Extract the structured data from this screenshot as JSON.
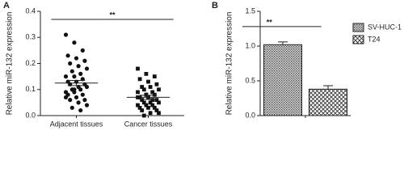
{
  "chart_data": [
    {
      "type": "strip",
      "panel": "A",
      "ylabel": "Relative miR-132 expression",
      "categories": [
        "Adjacent tissues",
        "Cancer tissues"
      ],
      "markers": [
        "circle",
        "square"
      ],
      "color": "#111111",
      "values": [
        [
          0.31,
          0.28,
          0.25,
          0.23,
          0.22,
          0.21,
          0.2,
          0.19,
          0.18,
          0.17,
          0.16,
          0.15,
          0.15,
          0.14,
          0.13,
          0.13,
          0.12,
          0.12,
          0.11,
          0.11,
          0.1,
          0.1,
          0.09,
          0.09,
          0.08,
          0.08,
          0.07,
          0.06,
          0.06,
          0.05,
          0.04,
          0.03,
          0.02,
          0.07,
          0.1
        ],
        [
          0.18,
          0.16,
          0.15,
          0.14,
          0.13,
          0.12,
          0.11,
          0.11,
          0.1,
          0.1,
          0.09,
          0.09,
          0.08,
          0.08,
          0.07,
          0.07,
          0.06,
          0.06,
          0.05,
          0.05,
          0.05,
          0.04,
          0.04,
          0.04,
          0.03,
          0.03,
          0.03,
          0.02,
          0.02,
          0.01,
          0.01,
          0.0,
          0.06,
          0.07,
          0.08
        ]
      ],
      "means": [
        0.125,
        0.07
      ],
      "errors": [
        0.01,
        0.008
      ],
      "significance": "**",
      "ylim": [
        0,
        0.4
      ],
      "yticks": [
        {
          "value": 0,
          "label": "0.0"
        },
        0.1,
        0.2,
        0.3,
        0.4
      ]
    },
    {
      "type": "bar",
      "panel": "B",
      "ylabel": "Relative miR-132 expression",
      "series": [
        {
          "name": "SV-HUC-1",
          "pattern": "dots",
          "values": [
            1.02
          ],
          "errors": [
            0.04
          ]
        },
        {
          "name": "T24",
          "pattern": "cross",
          "values": [
            0.38
          ],
          "errors": [
            0.05
          ]
        }
      ],
      "significance": "**",
      "ylim": [
        0,
        1.5
      ],
      "yticks": [
        {
          "value": 0,
          "label": "0.0"
        },
        0.5,
        {
          "value": 1,
          "label": "1.0"
        },
        {
          "value": 1.5,
          "label": "1.5"
        }
      ]
    }
  ]
}
